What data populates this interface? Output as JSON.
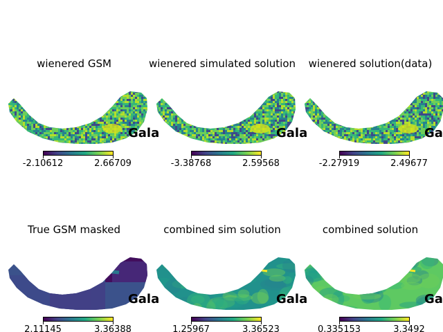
{
  "panels": [
    {
      "title": "wienered GSM",
      "label": "Gala",
      "min": "-2.10612",
      "max": "2.66709",
      "style": "noise",
      "base": "#35b779"
    },
    {
      "title": "wienered simulated solution",
      "label": "Gala",
      "min": "-3.38768",
      "max": "2.59568",
      "style": "noise",
      "base": "#7ad151"
    },
    {
      "title": "wienered solution(data)",
      "label": "Gala",
      "min": "-2.27919",
      "max": "2.49677",
      "style": "noise",
      "base": "#5ec962"
    },
    {
      "title": "True GSM masked",
      "label": "Gala",
      "min": "2.11145",
      "max": "3.36388",
      "style": "gsm",
      "base": "#3b528b"
    },
    {
      "title": "combined sim solution",
      "label": "Gala",
      "min": "1.25967",
      "max": "3.36523",
      "style": "smooth",
      "base": "#21918c"
    },
    {
      "title": "combined solution",
      "label": "Gala",
      "min": "0.335153",
      "max": "3.3492",
      "style": "smooth",
      "base": "#5ec962"
    }
  ],
  "colors": {
    "viridis_low": "#440154",
    "viridis_high": "#fde725",
    "background": "#ffffff"
  }
}
